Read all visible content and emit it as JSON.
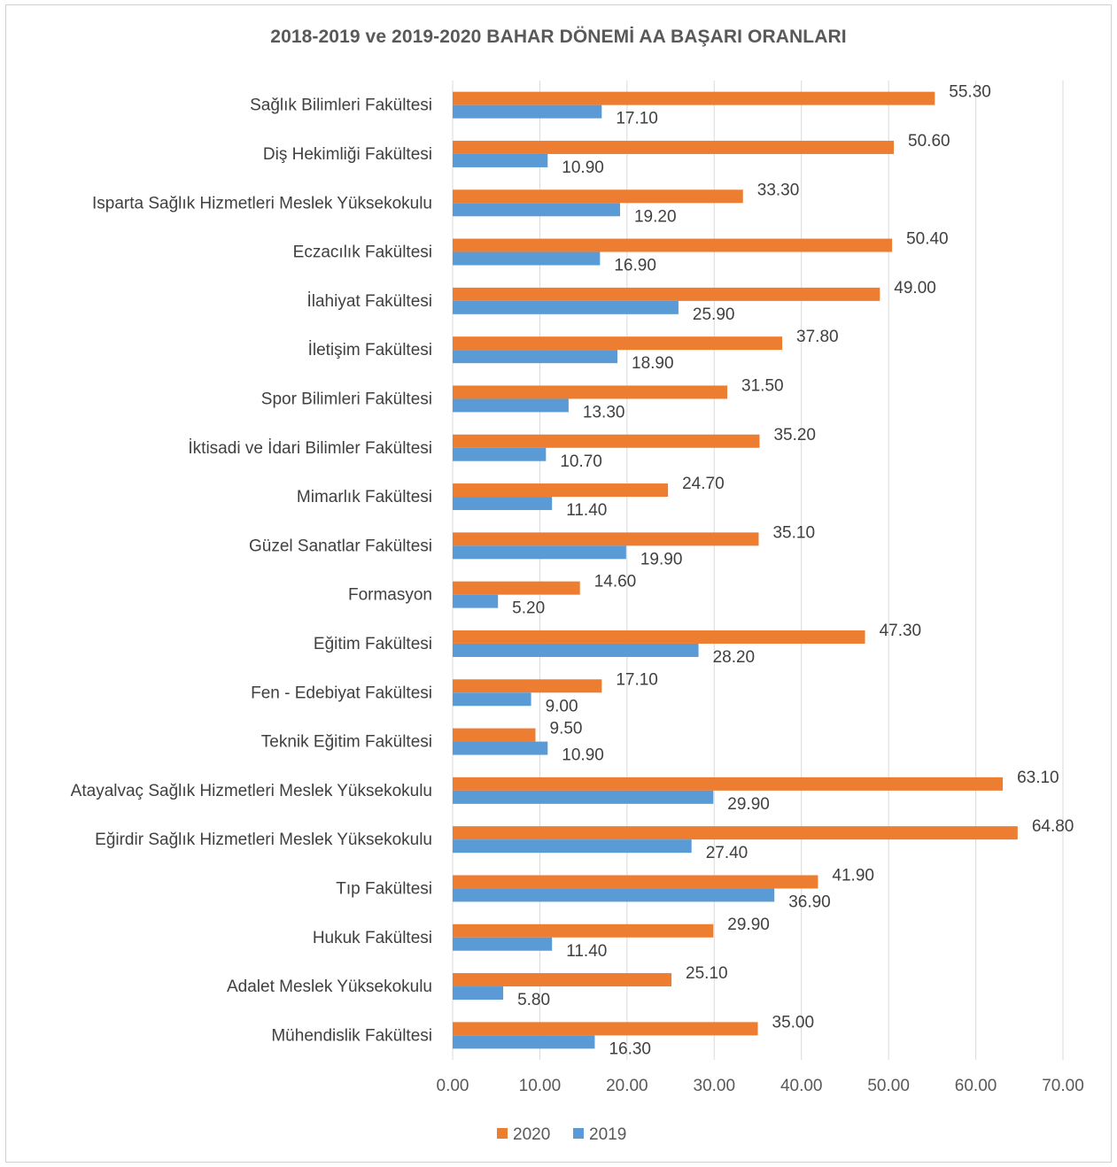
{
  "chart_data": {
    "type": "bar",
    "orientation": "horizontal",
    "title": "2018-2019 ve 2019-2020 BAHAR DÖNEMİ AA BAŞARI ORANLARI",
    "categories": [
      "Sağlık Bilimleri Fakültesi",
      "Diş Hekimliği Fakültesi",
      "Isparta Sağlık Hizmetleri Meslek Yüksekokulu",
      "Eczacılık Fakültesi",
      "İlahiyat Fakültesi",
      "İletişim Fakültesi",
      "Spor Bilimleri Fakültesi",
      "İktisadi ve İdari Bilimler Fakültesi",
      "Mimarlık Fakültesi",
      "Güzel Sanatlar Fakültesi",
      "Formasyon",
      "Eğitim Fakültesi",
      "Fen - Edebiyat Fakültesi",
      "Teknik Eğitim Fakültesi",
      "Atayalvaç Sağlık Hizmetleri Meslek Yüksekokulu",
      "Eğirdir Sağlık Hizmetleri Meslek Yüksekokulu",
      "Tıp Fakültesi",
      "Hukuk Fakültesi",
      "Adalet Meslek Yüksekokulu",
      "Mühendislik Fakültesi"
    ],
    "series": [
      {
        "name": "2020",
        "color": "#ed7d31",
        "values": [
          55.3,
          50.6,
          33.3,
          50.4,
          49.0,
          37.8,
          31.5,
          35.2,
          24.7,
          35.1,
          14.6,
          47.3,
          17.1,
          9.5,
          63.1,
          64.8,
          41.9,
          29.9,
          25.1,
          35.0
        ],
        "labels": [
          "55.30",
          "50.60",
          "33.30",
          "50.40",
          "49.00",
          "37.80",
          "31.50",
          "35.20",
          "24.70",
          "35.10",
          "14.60",
          "47.30",
          "17.10",
          "9.50",
          "63.10",
          "64.80",
          "41.90",
          "29.90",
          "25.10",
          "35.00"
        ]
      },
      {
        "name": "2019",
        "color": "#5b9bd5",
        "values": [
          17.1,
          10.9,
          19.2,
          16.9,
          25.9,
          18.9,
          13.3,
          10.7,
          11.4,
          19.9,
          5.2,
          28.2,
          9.0,
          10.9,
          29.9,
          27.4,
          36.9,
          11.4,
          5.8,
          16.3
        ],
        "labels": [
          "17.10",
          "10.90",
          "19.20",
          "16.90",
          "25.90",
          "18.90",
          "13.30",
          "10.70",
          "11.40",
          "19.90",
          "5.20",
          "28.20",
          "9.00",
          "10.90",
          "29.90",
          "27.40",
          "36.90",
          "11.40",
          "5.80",
          "16.30"
        ]
      }
    ],
    "xlim": [
      0,
      70
    ],
    "xticks": [
      "0.00",
      "10.00",
      "20.00",
      "30.00",
      "40.00",
      "50.00",
      "60.00",
      "70.00"
    ],
    "grid": true,
    "legend": "bottom",
    "xlabel": "",
    "ylabel": ""
  }
}
